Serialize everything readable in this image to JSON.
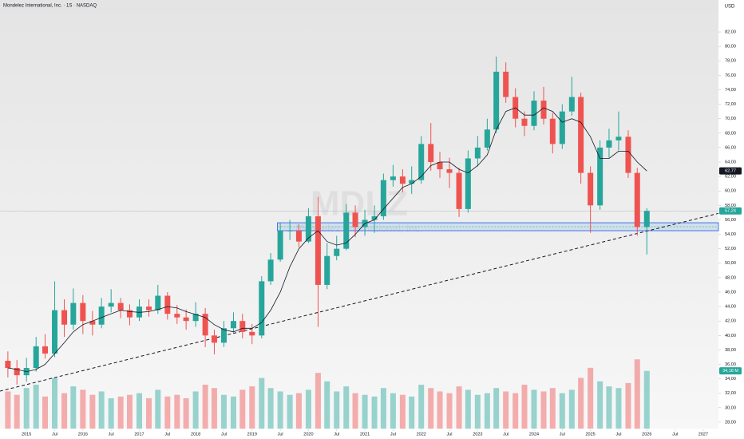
{
  "chart_data": {
    "type": "candlestick",
    "title": "Mondelez International, Inc. · 1S · NASDAQ",
    "currency": "USD",
    "watermark": "MDLZ",
    "watermark_subtitle": "Mondelez International, Inc.",
    "up_color": "#26a69a",
    "down_color": "#ef5350",
    "ma_color": "#131722",
    "xlim": [
      2014.53,
      2027.27
    ],
    "ylim": [
      27,
      83
    ],
    "volume_lim": [
      0,
      60
    ],
    "x": [
      2014.67,
      2014.83,
      2015.0,
      2015.17,
      2015.33,
      2015.5,
      2015.67,
      2015.83,
      2016.0,
      2016.17,
      2016.33,
      2016.5,
      2016.67,
      2016.83,
      2017.0,
      2017.17,
      2017.33,
      2017.5,
      2017.67,
      2017.83,
      2018.0,
      2018.17,
      2018.33,
      2018.5,
      2018.67,
      2018.83,
      2019.0,
      2019.17,
      2019.33,
      2019.5,
      2019.67,
      2019.83,
      2020.0,
      2020.17,
      2020.33,
      2020.5,
      2020.67,
      2020.83,
      2021.0,
      2021.17,
      2021.33,
      2021.5,
      2021.67,
      2021.83,
      2022.0,
      2022.17,
      2022.33,
      2022.5,
      2022.67,
      2022.83,
      2023.0,
      2023.17,
      2023.33,
      2023.5,
      2023.67,
      2023.83,
      2024.0,
      2024.17,
      2024.33,
      2024.5,
      2024.67,
      2024.83,
      2025.0,
      2025.17,
      2025.33,
      2025.5,
      2025.67,
      2025.83,
      2026.0
    ],
    "open": [
      36.5,
      35.5,
      34.5,
      35.5,
      38.5,
      37.5,
      43.5,
      41.5,
      44.5,
      42.0,
      41.5,
      44.0,
      44.5,
      43.5,
      42.5,
      44.0,
      43.5,
      45.5,
      43.0,
      42.5,
      42.0,
      43.0,
      40.0,
      39.0,
      41.0,
      42.0,
      40.5,
      40.0,
      47.5,
      50.5,
      54.5,
      54.5,
      53.0,
      56.5,
      47.0,
      51.0,
      52.0,
      57.0,
      55.0,
      56.0,
      56.5,
      61.5,
      62.0,
      61.0,
      61.5,
      66.5,
      64.0,
      63.0,
      62.5,
      57.5,
      64.5,
      66.0,
      68.5,
      76.5,
      73.0,
      70.0,
      69.0,
      72.5,
      70.0,
      66.5,
      71.0,
      73.0,
      62.5,
      58.0,
      66.0,
      67.0,
      67.5,
      62.5,
      55.0
    ],
    "high": [
      37.8,
      36.6,
      36.9,
      39.8,
      40.2,
      47.5,
      45.0,
      46.5,
      45.6,
      43.4,
      45.2,
      46.4,
      45.2,
      44.3,
      45.0,
      45.0,
      47.0,
      46.0,
      44.2,
      43.6,
      44.6,
      43.8,
      40.8,
      42.0,
      43.2,
      43.0,
      41.6,
      48.2,
      51.4,
      55.6,
      56.0,
      55.4,
      57.6,
      59.2,
      52.8,
      53.8,
      58.2,
      58.0,
      57.4,
      58.0,
      62.4,
      63.6,
      63.0,
      63.4,
      67.6,
      69.4,
      65.4,
      64.6,
      63.2,
      65.6,
      67.6,
      70.0,
      78.6,
      77.8,
      74.2,
      71.0,
      73.8,
      74.4,
      70.8,
      72.0,
      75.8,
      73.6,
      63.4,
      67.0,
      68.6,
      71.0,
      68.4,
      63.2,
      57.6
    ],
    "low": [
      34.2,
      33.2,
      33.6,
      35.0,
      36.8,
      37.0,
      39.8,
      40.8,
      40.2,
      40.0,
      41.0,
      43.2,
      42.4,
      41.4,
      42.0,
      42.6,
      43.0,
      42.2,
      41.6,
      40.8,
      41.2,
      38.4,
      37.4,
      38.4,
      40.4,
      39.6,
      38.8,
      39.6,
      47.0,
      50.2,
      53.2,
      52.2,
      52.8,
      41.2,
      46.4,
      50.4,
      51.8,
      53.6,
      53.8,
      54.2,
      56.0,
      60.6,
      59.8,
      59.6,
      61.0,
      62.8,
      61.8,
      60.4,
      56.4,
      57.0,
      63.4,
      65.6,
      68.0,
      72.2,
      68.8,
      67.6,
      68.4,
      69.2,
      65.2,
      65.8,
      70.4,
      61.0,
      54.2,
      57.4,
      64.6,
      65.6,
      61.8,
      53.8,
      51.2
    ],
    "close": [
      35.5,
      34.5,
      35.5,
      38.5,
      37.5,
      43.5,
      41.5,
      44.5,
      42.0,
      41.5,
      44.0,
      44.5,
      43.5,
      42.5,
      44.0,
      43.5,
      45.5,
      43.0,
      42.5,
      42.0,
      43.0,
      40.0,
      39.0,
      41.0,
      42.0,
      40.5,
      40.0,
      47.5,
      50.5,
      54.5,
      54.5,
      53.0,
      56.5,
      47.0,
      51.0,
      52.0,
      57.0,
      55.0,
      56.0,
      56.5,
      61.5,
      62.0,
      61.0,
      61.5,
      66.5,
      64.0,
      63.0,
      62.5,
      57.5,
      64.5,
      66.0,
      68.5,
      76.5,
      73.0,
      70.0,
      69.0,
      72.5,
      70.0,
      66.5,
      71.0,
      73.0,
      62.5,
      58.0,
      66.0,
      67.0,
      67.5,
      62.5,
      55.0,
      57.24
    ],
    "volume": [
      22,
      20,
      24,
      26,
      19,
      30,
      21,
      25,
      23,
      20,
      22,
      18,
      19,
      20,
      21,
      18,
      23,
      19,
      20,
      18,
      22,
      26,
      24,
      20,
      19,
      23,
      25,
      30,
      24,
      22,
      20,
      21,
      23,
      33,
      28,
      22,
      25,
      21,
      20,
      19,
      24,
      21,
      20,
      19,
      26,
      24,
      22,
      21,
      25,
      23,
      20,
      21,
      24,
      22,
      21,
      26,
      23,
      22,
      24,
      21,
      23,
      30,
      36,
      28,
      25,
      24,
      27,
      41,
      34.18
    ],
    "ma": [
      35.5,
      35.3,
      35.0,
      35.3,
      36.0,
      37.5,
      39.0,
      40.5,
      41.5,
      42.0,
      42.5,
      43.0,
      43.5,
      43.3,
      43.2,
      43.3,
      43.6,
      44.0,
      43.8,
      43.3,
      42.9,
      42.5,
      41.5,
      40.8,
      40.5,
      41.0,
      41.0,
      41.8,
      43.5,
      46.0,
      49.5,
      52.0,
      53.5,
      54.5,
      53.0,
      52.5,
      52.8,
      54.0,
      55.5,
      56.0,
      57.5,
      59.0,
      60.5,
      61.0,
      62.0,
      63.5,
      64.0,
      64.0,
      63.0,
      62.5,
      63.5,
      65.0,
      68.5,
      71.0,
      71.5,
      70.5,
      70.5,
      71.5,
      71.0,
      69.5,
      70.0,
      69.5,
      67.5,
      64.5,
      64.5,
      65.5,
      65.5,
      64.0,
      62.77
    ],
    "zone": [
      54.5,
      55.6
    ],
    "zone_start": 2019.45,
    "trendline": [
      [
        2014.53,
        32.3
      ],
      [
        2027.27,
        56.9
      ]
    ],
    "price_badges": [
      {
        "value": 57.24,
        "label": "57,24"
      },
      {
        "value": 62.77,
        "label": "62,77"
      }
    ],
    "volume_badge": {
      "value": 34.18,
      "label": "34,18 M"
    },
    "yticks": [
      {
        "value": 28,
        "label": "28,00"
      },
      {
        "value": 30,
        "label": "30,00"
      },
      {
        "value": 32,
        "label": "32,00"
      },
      {
        "value": 34,
        "label": "34,00"
      },
      {
        "value": 36,
        "label": "36,00"
      },
      {
        "value": 38,
        "label": "38,00"
      },
      {
        "value": 40,
        "label": "40,00"
      },
      {
        "value": 42,
        "label": "42,00"
      },
      {
        "value": 44,
        "label": "44,00"
      },
      {
        "value": 46,
        "label": "46,00"
      },
      {
        "value": 48,
        "label": "48,00"
      },
      {
        "value": 50,
        "label": "50,00"
      },
      {
        "value": 52,
        "label": "52,00"
      },
      {
        "value": 54,
        "label": "54,00"
      },
      {
        "value": 56,
        "label": "56,00"
      },
      {
        "value": 58,
        "label": "58,00"
      },
      {
        "value": 60,
        "label": "60,00"
      },
      {
        "value": 62,
        "label": "62,00"
      },
      {
        "value": 64,
        "label": "64,00"
      },
      {
        "value": 66,
        "label": "66,00"
      },
      {
        "value": 68,
        "label": "68,00"
      },
      {
        "value": 70,
        "label": "70,00"
      },
      {
        "value": 72,
        "label": "72,00"
      },
      {
        "value": 74,
        "label": "74,00"
      },
      {
        "value": 76,
        "label": "76,00"
      },
      {
        "value": 78,
        "label": "78,00"
      },
      {
        "value": 80,
        "label": "80,00"
      },
      {
        "value": 82,
        "label": "82,00"
      }
    ],
    "xticks": [
      2015,
      {
        "value": 2015.5,
        "label": "Jul"
      },
      2016,
      {
        "value": 2016.5,
        "label": "Jul"
      },
      2017,
      {
        "value": 2017.5,
        "label": "Jul"
      },
      2018,
      {
        "value": 2018.5,
        "label": "Jul"
      },
      2019,
      {
        "value": 2019.5,
        "label": "Jul"
      },
      2020,
      {
        "value": 2020.5,
        "label": "Jul"
      },
      2021,
      {
        "value": 2021.5,
        "label": "Jul"
      },
      2022,
      {
        "value": 2022.5,
        "label": "Jul"
      },
      2023,
      {
        "value": 2023.5,
        "label": "Jul"
      },
      2024,
      {
        "value": 2024.5,
        "label": "Jul"
      },
      2025,
      {
        "value": 2025.5,
        "label": "Jul"
      },
      2026,
      {
        "value": 2026.5,
        "label": "Jul"
      },
      2027
    ]
  }
}
